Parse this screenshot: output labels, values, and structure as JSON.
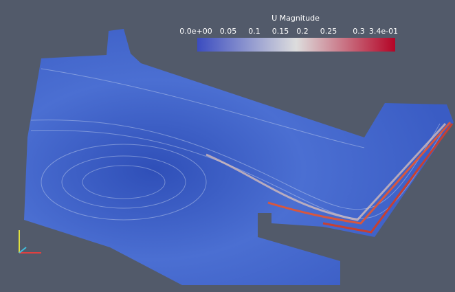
{
  "colorbar": {
    "title": "U Magnitude",
    "labels": [
      "0.0e+00",
      "0.05",
      "0.1",
      "0.15",
      "0.2",
      "0.25",
      "0.3",
      "3.4e-01"
    ]
  }
}
